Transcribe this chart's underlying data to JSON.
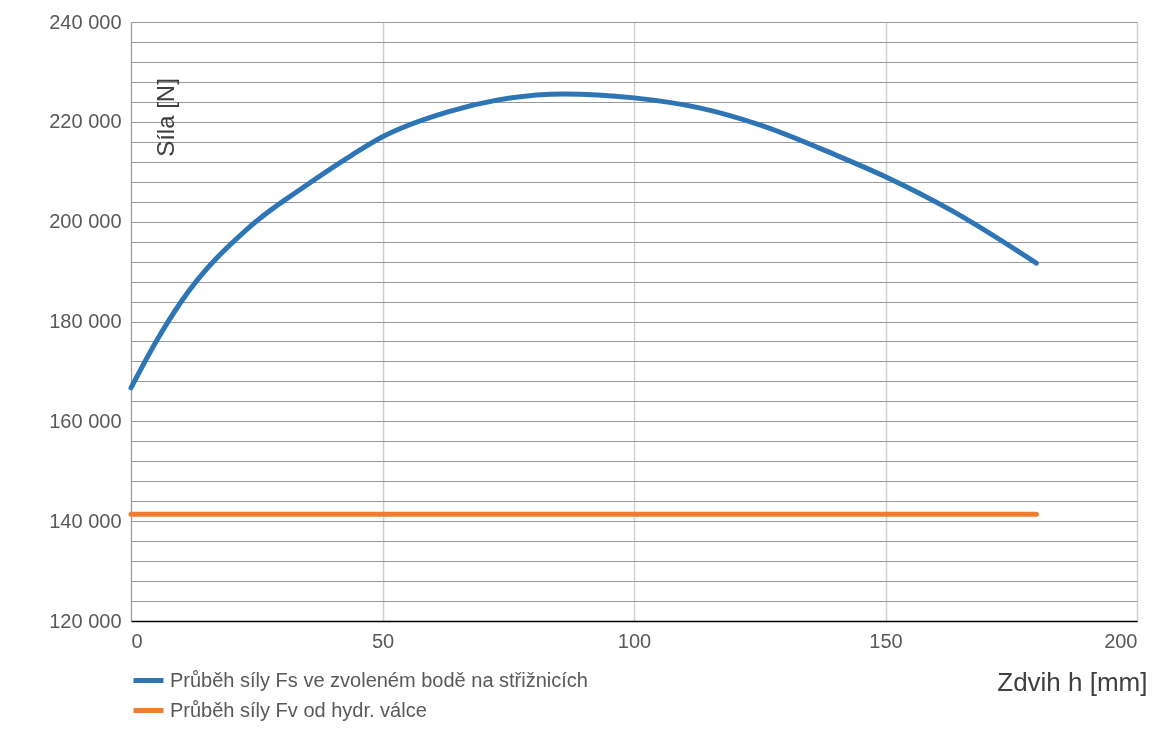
{
  "chart_data": {
    "type": "line",
    "xlabel": "Zdvih h [mm]",
    "ylabel": "Síla [N]",
    "xlim": [
      0,
      200
    ],
    "xticks": [
      0,
      50,
      100,
      150,
      200
    ],
    "ylim": [
      120000,
      240000
    ],
    "yticks": [
      {
        "value": 120000,
        "label": "120 000"
      },
      {
        "value": 124000,
        "label": null
      },
      {
        "value": 128000,
        "label": null
      },
      {
        "value": 132000,
        "label": null
      },
      {
        "value": 136000,
        "label": null
      },
      {
        "value": 140000,
        "label": "140 000"
      },
      {
        "value": 144000,
        "label": null
      },
      {
        "value": 148000,
        "label": null
      },
      {
        "value": 152000,
        "label": null
      },
      {
        "value": 156000,
        "label": null
      },
      {
        "value": 160000,
        "label": "160 000"
      },
      {
        "value": 164000,
        "label": null
      },
      {
        "value": 168000,
        "label": null
      },
      {
        "value": 172000,
        "label": null
      },
      {
        "value": 176000,
        "label": null
      },
      {
        "value": 180000,
        "label": "180 000"
      },
      {
        "value": 184000,
        "label": null
      },
      {
        "value": 188000,
        "label": null
      },
      {
        "value": 192000,
        "label": null
      },
      {
        "value": 196000,
        "label": null
      },
      {
        "value": 200000,
        "label": "200 000"
      },
      {
        "value": 204000,
        "label": null
      },
      {
        "value": 208000,
        "label": null
      },
      {
        "value": 212000,
        "label": null
      },
      {
        "value": 216000,
        "label": null
      },
      {
        "value": 220000,
        "label": "220 000"
      },
      {
        "value": 224000,
        "label": null
      },
      {
        "value": 228000,
        "label": null
      },
      {
        "value": 232000,
        "label": null
      },
      {
        "value": 236000,
        "label": null
      },
      {
        "value": 240000,
        "label": "240 000"
      }
    ],
    "grid": true,
    "legend": "bottom left",
    "marker": "none",
    "line_style": "solid",
    "series": [
      {
        "name": "Průběh síly Fs ve zvoleném bodě na střižnicích",
        "color": "#2e75b6",
        "x": [
          0,
          5,
          10,
          24,
          34,
          44,
          50,
          63,
          73,
          86,
          100,
          113,
          125,
          140,
          150,
          163,
          180
        ],
        "values": [
          166700,
          176000,
          184000,
          199300,
          206700,
          213400,
          217000,
          222000,
          224400,
          225600,
          224800,
          222800,
          219400,
          213400,
          209000,
          202300,
          191700
        ]
      },
      {
        "name": "Průběh síly Fv od hydr. válce",
        "color": "#ed7d31",
        "x": [
          0,
          180
        ],
        "values": [
          141400,
          141400
        ]
      }
    ]
  }
}
